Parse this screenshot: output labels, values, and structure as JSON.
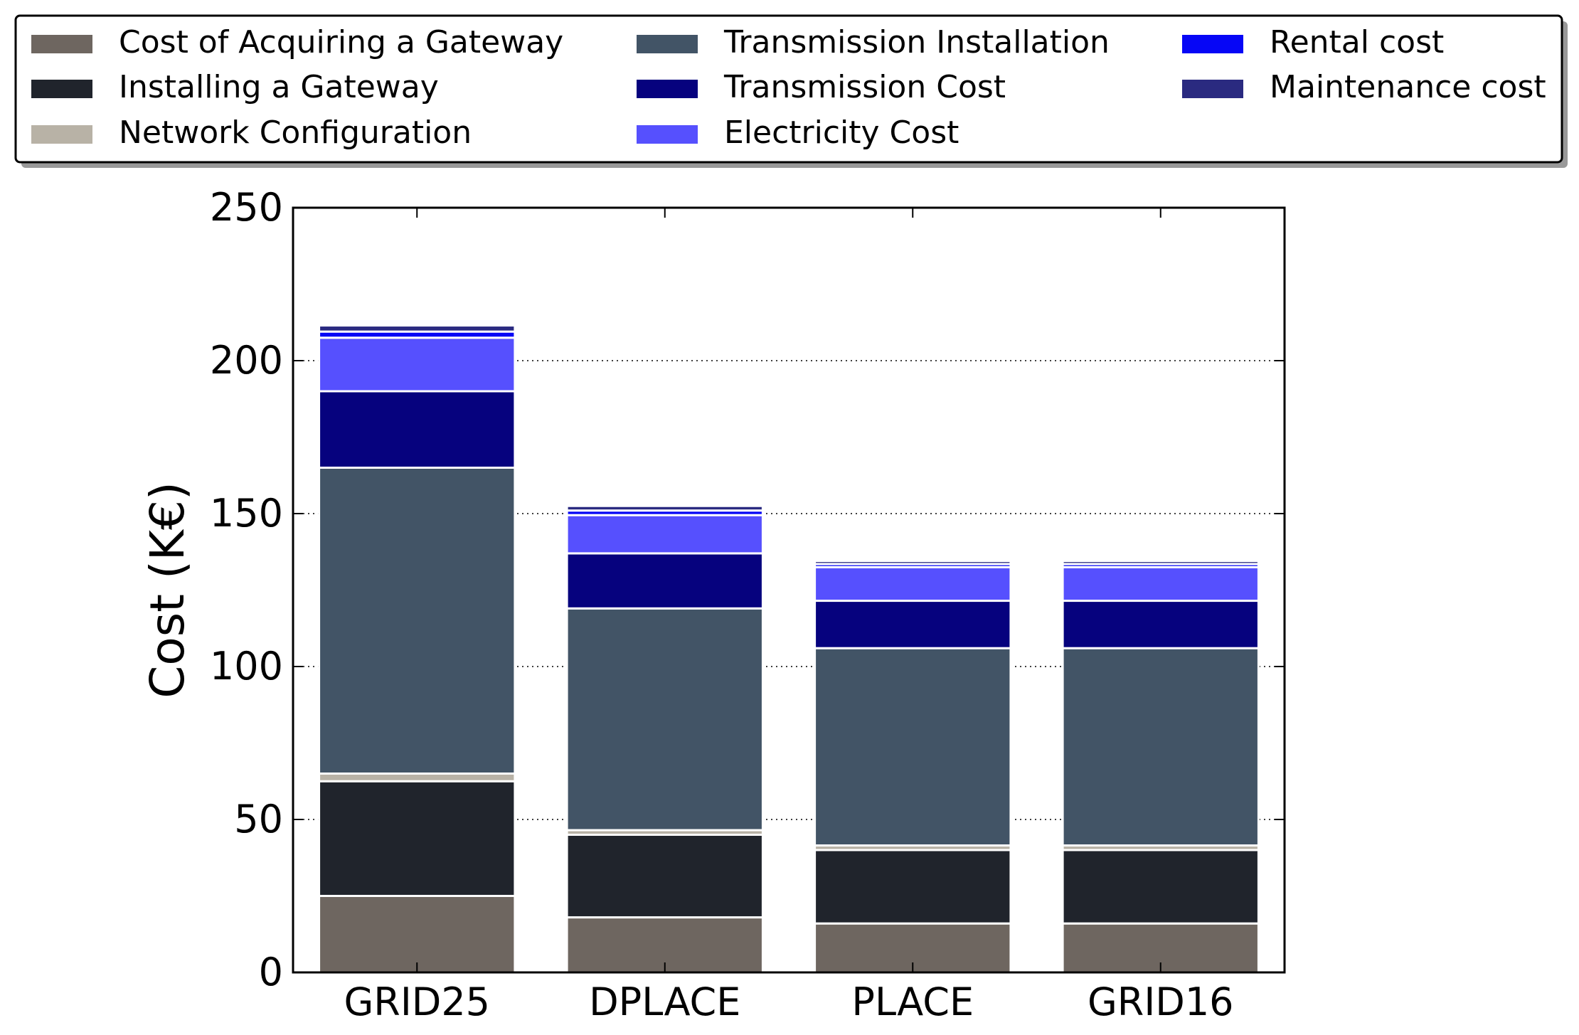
{
  "chart_data": {
    "type": "bar",
    "stacked": true,
    "title": "",
    "xlabel": "",
    "ylabel": "Cost (K€)",
    "ylim": [
      0,
      250
    ],
    "yticks": [
      0,
      50,
      100,
      150,
      200,
      250
    ],
    "grid": "y-dotted",
    "legend_position": "top",
    "categories": [
      "GRID25",
      "DPLACE",
      "PLACE",
      "GRID16"
    ],
    "series": [
      {
        "name": "Cost of Acquiring a Gateway",
        "color": "#6e6660",
        "values": [
          25,
          18,
          16,
          16
        ]
      },
      {
        "name": "Installing a Gateway",
        "color": "#20242c",
        "values": [
          37.5,
          27,
          24,
          24
        ]
      },
      {
        "name": "Network Configuration",
        "color": "#b8b2a6",
        "values": [
          2.5,
          1.5,
          1.5,
          1.5
        ]
      },
      {
        "name": "Transmission Installation",
        "color": "#425466",
        "values": [
          100,
          72.5,
          64.5,
          64.5
        ]
      },
      {
        "name": "Transmission Cost",
        "color": "#06027e",
        "values": [
          25,
          18,
          15.5,
          15.5
        ]
      },
      {
        "name": "Electricity Cost",
        "color": "#5650fe",
        "values": [
          17.5,
          12.5,
          11,
          11
        ]
      },
      {
        "name": "Rental cost",
        "color": "#0606f6",
        "values": [
          2,
          1.5,
          1,
          1
        ]
      },
      {
        "name": "Maintenance cost",
        "color": "#2a2a80",
        "values": [
          2,
          1.5,
          1,
          1
        ]
      }
    ]
  }
}
